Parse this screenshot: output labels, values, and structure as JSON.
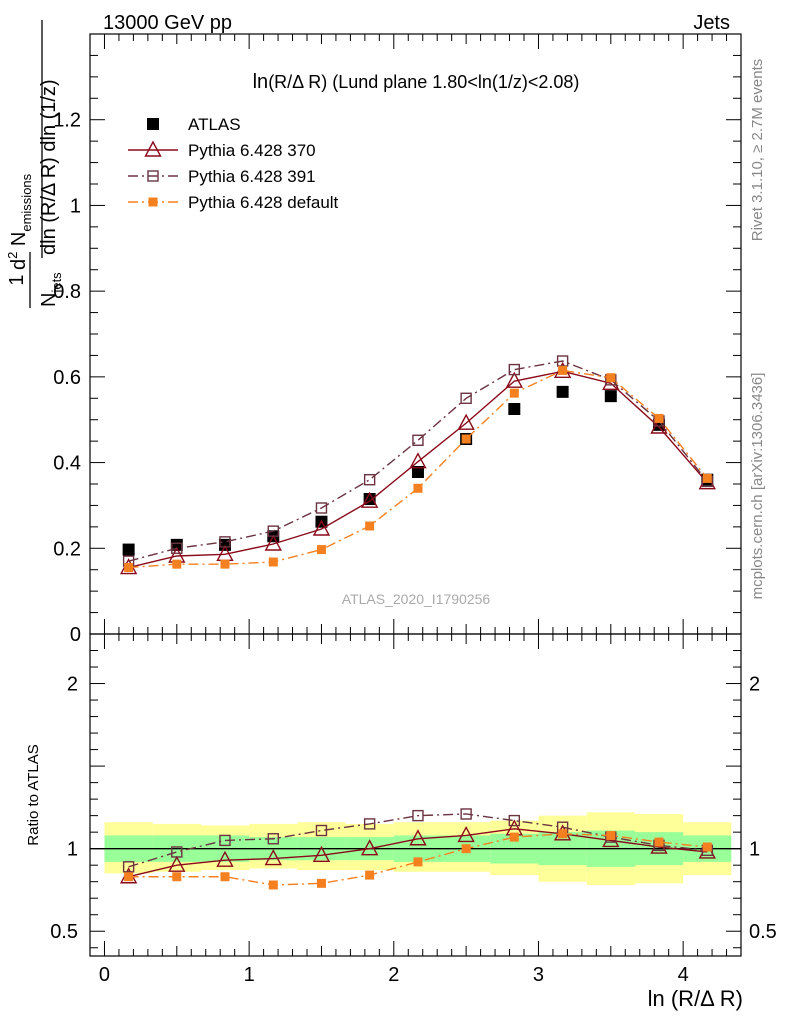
{
  "header": {
    "left": "13000 GeV pp",
    "right": "Jets"
  },
  "side_labels": {
    "rivet": "Rivet 3.1.10, ≥ 2.7M events",
    "mcplots": "mcplots.cern.ch [arXiv:1306.3436]"
  },
  "watermark": "ATLAS_2020_I1790256",
  "colors": {
    "atlas": "#000000",
    "p370": "#8b0a1a",
    "p391": "#6b3340",
    "pdef": "#f58020",
    "band_yellow": "#ffff99",
    "band_green": "#99ff99"
  },
  "chart_data": [
    {
      "type": "scatter",
      "panel": "main",
      "title_main": "ln",
      "title_tail": "(R/Δ R) (Lund plane 1.80<ln(1/z)<2.08)",
      "ylabel": {
        "one": "1",
        "njets": "N",
        "njets_sub": "jets",
        "dln": "dln (R/Δ R) dln (1/z)",
        "d2": "d",
        "d2_sup": "2",
        "n": " N",
        "n_sub": "emissions"
      },
      "xlim": [
        -0.1,
        4.4
      ],
      "ylim": [
        0,
        1.4
      ],
      "yticks": [
        0,
        0.2,
        0.4,
        0.6,
        0.8,
        1,
        1.2
      ],
      "ytick_labels": [
        "0",
        "0.2",
        "0.4",
        "0.6",
        "0.8",
        "1",
        "1.2"
      ],
      "x": [
        0.167,
        0.5,
        0.833,
        1.167,
        1.5,
        1.833,
        2.167,
        2.5,
        2.833,
        3.167,
        3.5,
        3.833,
        4.167
      ],
      "series": [
        {
          "name": "ATLAS",
          "key": "atlas",
          "marker": "square-filled",
          "line": "none",
          "values": [
            0.197,
            0.208,
            0.208,
            0.228,
            0.262,
            0.315,
            0.378,
            0.455,
            0.525,
            0.565,
            0.555,
            0.488,
            0.36
          ]
        },
        {
          "name": "Pythia 6.428 370",
          "key": "p370",
          "marker": "triangle-open",
          "line": "solid",
          "values": [
            0.155,
            0.182,
            0.186,
            0.21,
            0.245,
            0.31,
            0.402,
            0.492,
            0.59,
            0.613,
            0.585,
            0.483,
            0.353
          ]
        },
        {
          "name": "Pythia 6.428 391",
          "key": "p391",
          "marker": "square-open",
          "line": "dashdot",
          "values": [
            0.17,
            0.2,
            0.215,
            0.24,
            0.294,
            0.36,
            0.452,
            0.55,
            0.617,
            0.637,
            0.593,
            0.497,
            0.356
          ]
        },
        {
          "name": "Pythia 6.428 default",
          "key": "pdef",
          "marker": "square-filled-small",
          "line": "dashdot",
          "values": [
            0.155,
            0.163,
            0.163,
            0.168,
            0.197,
            0.252,
            0.34,
            0.455,
            0.562,
            0.615,
            0.598,
            0.503,
            0.363
          ]
        }
      ]
    },
    {
      "type": "line",
      "panel": "ratio",
      "ylabel": "Ratio to ATLAS",
      "xlabel": "ln (R/Δ R)",
      "xlim": [
        -0.1,
        4.4
      ],
      "ylim": [
        0.35,
        2.3
      ],
      "yticks": [
        0.5,
        1,
        2
      ],
      "ytick_labels": [
        "0.5",
        "1",
        "2"
      ],
      "xticks": [
        0,
        1,
        2,
        3,
        4
      ],
      "xtick_labels": [
        "0",
        "1",
        "2",
        "3",
        "4"
      ],
      "x": [
        0.167,
        0.5,
        0.833,
        1.167,
        1.5,
        1.833,
        2.167,
        2.5,
        2.833,
        3.167,
        3.5,
        3.833,
        4.167
      ],
      "bands": {
        "x_edges": [
          0.0,
          0.333,
          0.667,
          1.0,
          1.333,
          1.667,
          2.0,
          2.333,
          2.667,
          3.0,
          3.333,
          3.667,
          4.0,
          4.333
        ],
        "yellow_low": [
          0.85,
          0.86,
          0.87,
          0.88,
          0.87,
          0.87,
          0.86,
          0.86,
          0.84,
          0.8,
          0.78,
          0.79,
          0.84
        ],
        "yellow_high": [
          1.16,
          1.15,
          1.14,
          1.15,
          1.16,
          1.15,
          1.16,
          1.16,
          1.17,
          1.2,
          1.22,
          1.21,
          1.16
        ],
        "green_low": [
          0.92,
          0.92,
          0.92,
          0.93,
          0.93,
          0.93,
          0.92,
          0.92,
          0.91,
          0.9,
          0.89,
          0.9,
          0.92
        ],
        "green_high": [
          1.08,
          1.08,
          1.08,
          1.07,
          1.07,
          1.07,
          1.08,
          1.08,
          1.09,
          1.1,
          1.11,
          1.1,
          1.08
        ]
      },
      "series": [
        {
          "name": "Pythia 6.428 370",
          "key": "p370",
          "marker": "triangle-open",
          "line": "solid",
          "values": [
            0.83,
            0.9,
            0.93,
            0.94,
            0.96,
            1.0,
            1.06,
            1.08,
            1.12,
            1.09,
            1.05,
            1.01,
            0.98
          ]
        },
        {
          "name": "Pythia 6.428 391",
          "key": "p391",
          "marker": "square-open",
          "line": "dashdot",
          "values": [
            0.89,
            0.98,
            1.05,
            1.06,
            1.11,
            1.15,
            1.2,
            1.21,
            1.17,
            1.13,
            1.07,
            1.02,
            0.99
          ]
        },
        {
          "name": "Pythia 6.428 default",
          "key": "pdef",
          "marker": "square-filled-small",
          "line": "dashdot",
          "values": [
            0.83,
            0.83,
            0.83,
            0.78,
            0.79,
            0.84,
            0.92,
            1.0,
            1.07,
            1.09,
            1.08,
            1.04,
            1.01
          ]
        }
      ]
    }
  ]
}
